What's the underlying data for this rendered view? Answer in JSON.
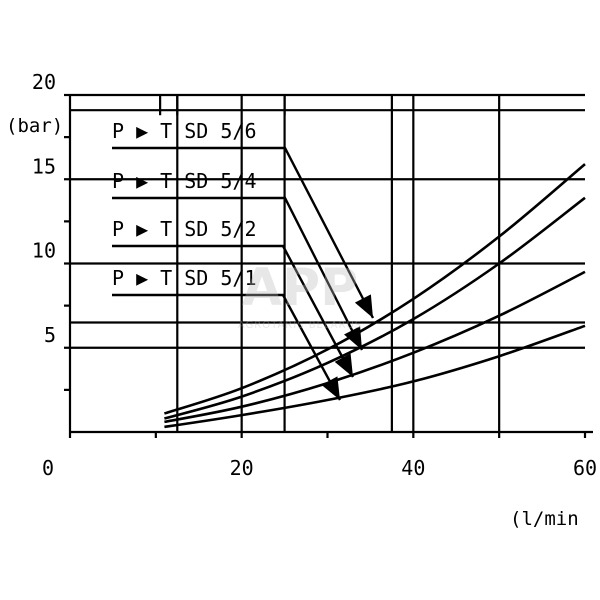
{
  "chart_data": {
    "type": "line",
    "title": "",
    "xlabel": "(l/min",
    "ylabel": "(bar)",
    "xlim": [
      0,
      60
    ],
    "ylim": [
      0,
      20
    ],
    "x_ticks": [
      "0",
      "20",
      "40",
      "60"
    ],
    "y_ticks": [
      "5",
      "10",
      "15",
      "20"
    ],
    "grid": true,
    "series": [
      {
        "name": "P ▶ T SD 5/6",
        "x": [
          11,
          20,
          30,
          40,
          50,
          60
        ],
        "y": [
          1.1,
          2.6,
          4.9,
          7.9,
          11.6,
          15.9
        ]
      },
      {
        "name": "P ▶ T SD 5/4",
        "x": [
          11,
          20,
          30,
          40,
          50,
          60
        ],
        "y": [
          0.8,
          2.1,
          4.1,
          6.7,
          10.0,
          13.9
        ]
      },
      {
        "name": "P ▶ T SD 5/2",
        "x": [
          11,
          20,
          30,
          40,
          50,
          60
        ],
        "y": [
          0.6,
          1.5,
          2.9,
          4.7,
          6.9,
          9.5
        ]
      },
      {
        "name": "P ▶ T SD 5/1",
        "x": [
          11,
          20,
          30,
          40,
          50,
          60
        ],
        "y": [
          0.3,
          1.0,
          1.9,
          3.0,
          4.5,
          6.3
        ]
      }
    ],
    "legend": "top-left, arrows point to curves"
  },
  "watermark": {
    "text": "APP",
    "subtext": "AGROTARIS BELARUS"
  }
}
